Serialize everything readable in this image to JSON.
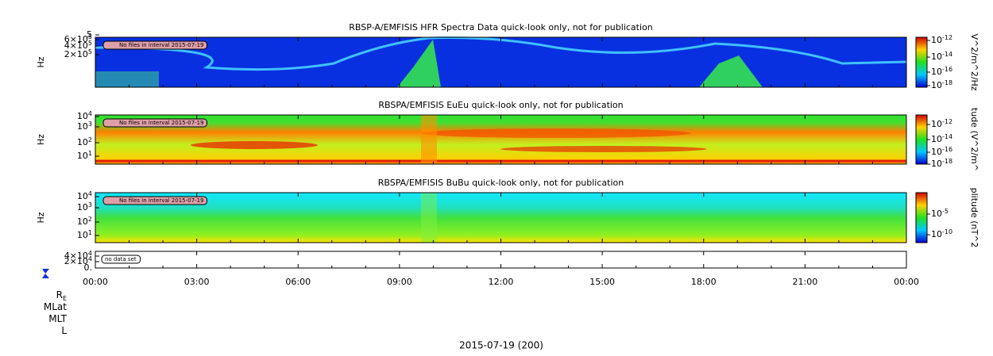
{
  "panels": [
    {
      "title": "RBSP-A/EMFISIS  HFR Spectra Data quick-look only, not for publication",
      "ylabel": "Hz",
      "yticks": [
        {
          "base": "5"
        },
        {
          "base": "6×10",
          "exp": "5"
        },
        {
          "base": "4×10",
          "exp": "5"
        },
        {
          "base": "2×10",
          "exp": "5"
        }
      ],
      "note": "No files in interval 2015-07-19",
      "colorbar_label": "V^2/m^2/Hz",
      "colorbar_ticks": [
        {
          "base": "10",
          "exp": "-12"
        },
        {
          "base": "10",
          "exp": "-14"
        },
        {
          "base": "10",
          "exp": "-16"
        },
        {
          "base": "10",
          "exp": "-18"
        }
      ]
    },
    {
      "title": "RBSPA/EMFISIS  EuEu quick-look only, not for publication",
      "ylabel": "Hz",
      "yticks": [
        {
          "base": "10",
          "exp": "4"
        },
        {
          "base": "10",
          "exp": "3"
        },
        {
          "base": "10",
          "exp": "2"
        },
        {
          "base": "10",
          "exp": "1"
        }
      ],
      "note": "No files in interval 2015-07-19",
      "colorbar_label": "tude (V^2/m^",
      "colorbar_ticks": [
        {
          "base": "10",
          "exp": "-12"
        },
        {
          "base": "10",
          "exp": "-14"
        },
        {
          "base": "10",
          "exp": "-16"
        },
        {
          "base": "10",
          "exp": "-18"
        }
      ]
    },
    {
      "title": "RBSPA/EMFISIS  BuBu quick-look only, not for publication",
      "ylabel": "Hz",
      "yticks": [
        {
          "base": "10",
          "exp": "4"
        },
        {
          "base": "10",
          "exp": "3"
        },
        {
          "base": "10",
          "exp": "2"
        },
        {
          "base": "10",
          "exp": "1"
        }
      ],
      "note": "No files in interval 2015-07-19",
      "colorbar_label": "plitude (nT^2",
      "colorbar_ticks": [
        {
          "base": "10",
          "exp": "-5"
        },
        {
          "base": "10",
          "exp": "-10"
        }
      ]
    },
    {
      "yticks": [
        {
          "base": "4×10",
          "exp": "4"
        },
        {
          "base": "2×10",
          "exp": "4"
        },
        {
          "base": "0."
        }
      ],
      "note": "no data set"
    }
  ],
  "x_ticks": [
    "00:00",
    "03:00",
    "06:00",
    "09:00",
    "12:00",
    "15:00",
    "18:00",
    "21:00",
    "00:00"
  ],
  "ephemeris_labels": [
    {
      "base": "R",
      "sub": "E"
    },
    {
      "base": "MLat"
    },
    {
      "base": "MLT"
    },
    {
      "base": "L"
    }
  ],
  "x_title": "2015-07-19 (200)"
}
